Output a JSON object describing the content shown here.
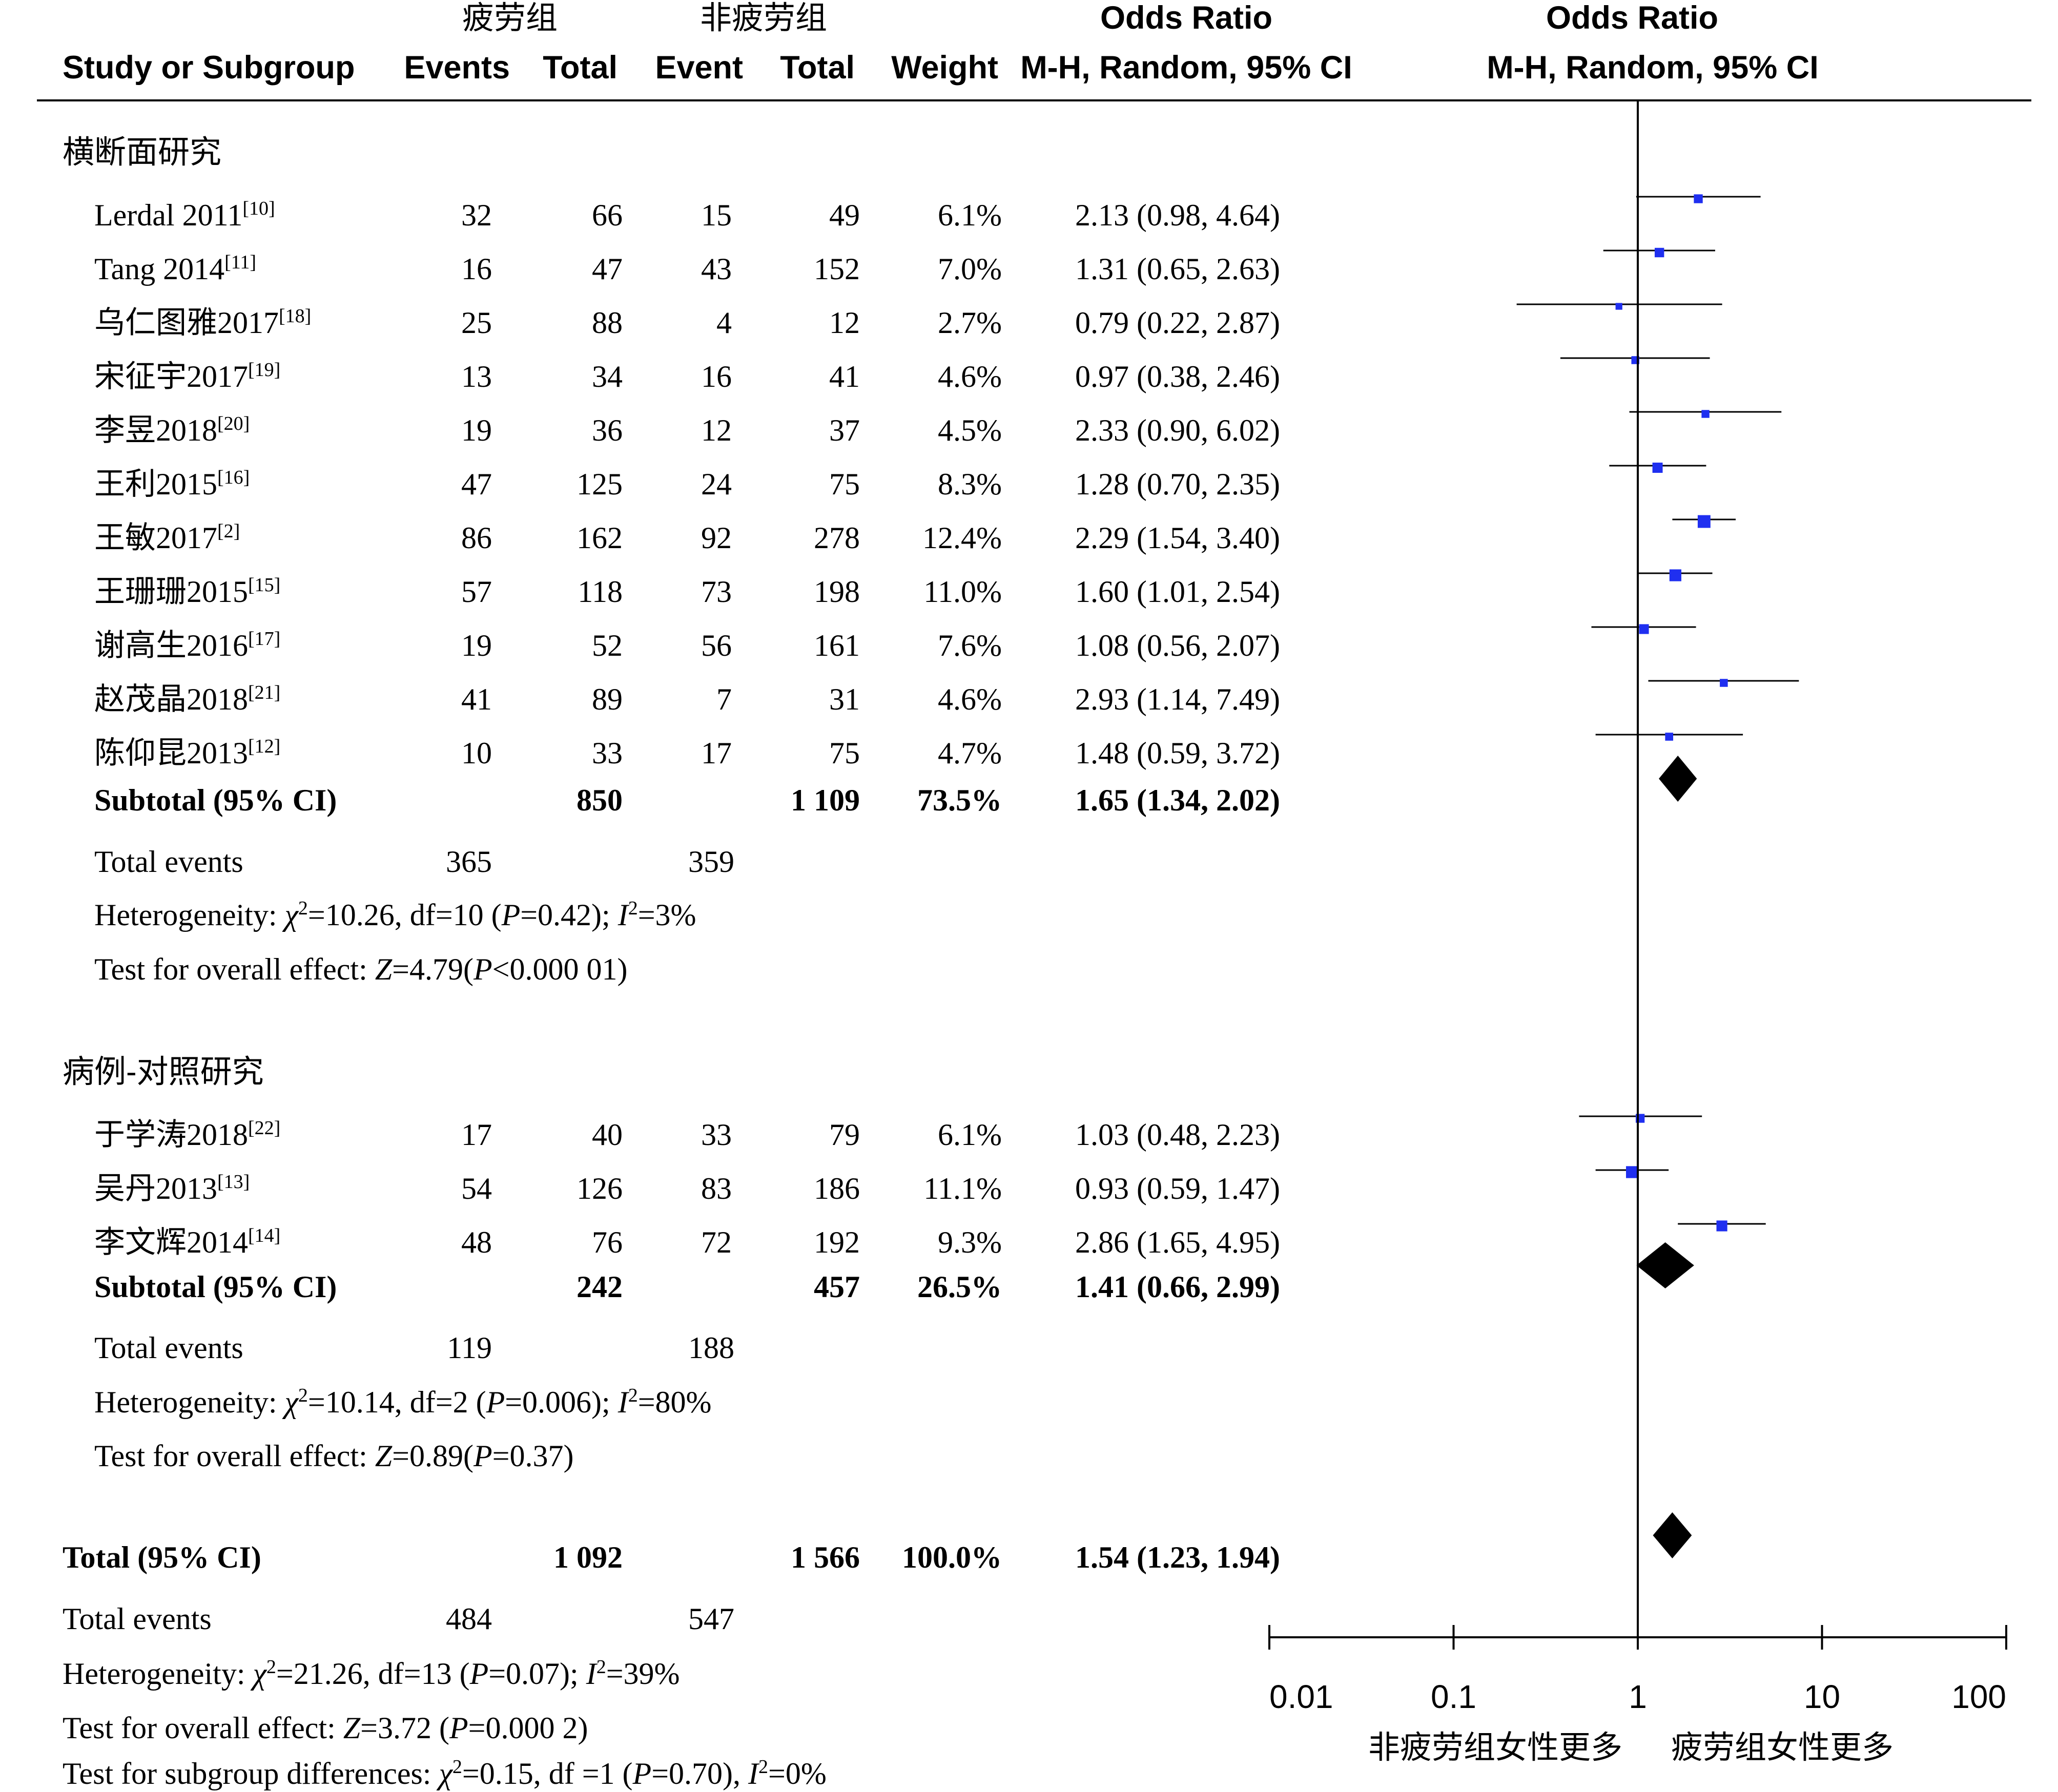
{
  "chart_data": {
    "type": "forest",
    "header": {
      "group1": "疲劳组",
      "group2": "非疲劳组",
      "odds_ratio": "Odds Ratio",
      "study_col": "Study or Subgroup",
      "events1": "Events",
      "total1": "Total",
      "events2": "Event",
      "total2": "Total",
      "weight": "Weight",
      "method_text": "M-H, Random, 95% CI",
      "method_plot": "M-H, Random, 95% CI"
    },
    "subgroups": [
      {
        "title": "横断面研究",
        "studies": [
          {
            "name": "Lerdal 2011",
            "ref": "[10]",
            "e1": "32",
            "n1": "66",
            "e2": "15",
            "n2": "49",
            "weight": "6.1%",
            "ci_text": "2.13 (0.98, 4.64)",
            "or": 2.13,
            "lo": 0.98,
            "hi": 4.64,
            "w": 6.1
          },
          {
            "name": "Tang 2014",
            "ref": "[11]",
            "e1": "16",
            "n1": "47",
            "e2": "43",
            "n2": "152",
            "weight": "7.0%",
            "ci_text": "1.31 (0.65, 2.63)",
            "or": 1.31,
            "lo": 0.65,
            "hi": 2.63,
            "w": 7.0
          },
          {
            "name": "乌仁图雅2017",
            "ref": "[18]",
            "e1": "25",
            "n1": "88",
            "e2": "4",
            "n2": "12",
            "weight": "2.7%",
            "ci_text": "0.79 (0.22, 2.87)",
            "or": 0.79,
            "lo": 0.22,
            "hi": 2.87,
            "w": 2.7
          },
          {
            "name": "宋征宇2017",
            "ref": "[19]",
            "e1": "13",
            "n1": "34",
            "e2": "16",
            "n2": "41",
            "weight": "4.6%",
            "ci_text": "0.97 (0.38, 2.46)",
            "or": 0.97,
            "lo": 0.38,
            "hi": 2.46,
            "w": 4.6
          },
          {
            "name": "李昱2018",
            "ref": "[20]",
            "e1": "19",
            "n1": "36",
            "e2": "12",
            "n2": "37",
            "weight": "4.5%",
            "ci_text": "2.33 (0.90, 6.02)",
            "or": 2.33,
            "lo": 0.9,
            "hi": 6.02,
            "w": 4.5
          },
          {
            "name": "王利2015",
            "ref": "[16]",
            "e1": "47",
            "n1": "125",
            "e2": "24",
            "n2": "75",
            "weight": "8.3%",
            "ci_text": "1.28 (0.70, 2.35)",
            "or": 1.28,
            "lo": 0.7,
            "hi": 2.35,
            "w": 8.3
          },
          {
            "name": "王敏2017",
            "ref": "[2]",
            "e1": "86",
            "n1": "162",
            "e2": "92",
            "n2": "278",
            "weight": "12.4%",
            "ci_text": "2.29 (1.54, 3.40)",
            "or": 2.29,
            "lo": 1.54,
            "hi": 3.4,
            "w": 12.4
          },
          {
            "name": "王珊珊2015",
            "ref": "[15]",
            "e1": "57",
            "n1": "118",
            "e2": "73",
            "n2": "198",
            "weight": "11.0%",
            "ci_text": "1.60 (1.01, 2.54)",
            "or": 1.6,
            "lo": 1.01,
            "hi": 2.54,
            "w": 11.0
          },
          {
            "name": "谢高生2016",
            "ref": "[17]",
            "e1": "19",
            "n1": "52",
            "e2": "56",
            "n2": "161",
            "weight": "7.6%",
            "ci_text": "1.08 (0.56, 2.07)",
            "or": 1.08,
            "lo": 0.56,
            "hi": 2.07,
            "w": 7.6
          },
          {
            "name": "赵茂晶2018",
            "ref": "[21]",
            "e1": "41",
            "n1": "89",
            "e2": "7",
            "n2": "31",
            "weight": "4.6%",
            "ci_text": "2.93 (1.14, 7.49)",
            "or": 2.93,
            "lo": 1.14,
            "hi": 7.49,
            "w": 4.6
          },
          {
            "name": "陈仰昆2013",
            "ref": "[12]",
            "e1": "10",
            "n1": "33",
            "e2": "17",
            "n2": "75",
            "weight": "4.7%",
            "ci_text": "1.48 (0.59, 3.72)",
            "or": 1.48,
            "lo": 0.59,
            "hi": 3.72,
            "w": 4.7
          }
        ],
        "subtotal": {
          "label": "Subtotal (95% CI)",
          "n1": "850",
          "n2": "1 109",
          "weight": "73.5%",
          "ci_text": "1.65 (1.34, 2.02)",
          "or": 1.65,
          "lo": 1.34,
          "hi": 2.02
        },
        "total_events": {
          "label": "Total events",
          "e1": "365",
          "e2": "359"
        },
        "heterogeneity": {
          "prefix": "Heterogeneity: ",
          "chi_sym": "χ",
          "chi_sup": "2",
          "part_a": "=10.26, df=10 (",
          "p_sym": "P",
          "part_b": "=0.42); ",
          "i_sym": "I",
          "i_sup": "2",
          "part_c": "=3%"
        },
        "overall": {
          "prefix": "Test for overall effect: ",
          "z_sym": "Z",
          "part_a": "=4.79(",
          "p_sym": "P",
          "part_b": "<0.000 01)"
        }
      },
      {
        "title": "病例-对照研究",
        "studies": [
          {
            "name": "于学涛2018",
            "ref": "[22]",
            "e1": "17",
            "n1": "40",
            "e2": "33",
            "n2": "79",
            "weight": "6.1%",
            "ci_text": "1.03 (0.48, 2.23)",
            "or": 1.03,
            "lo": 0.48,
            "hi": 2.23,
            "w": 6.1
          },
          {
            "name": "吴丹2013",
            "ref": "[13]",
            "e1": "54",
            "n1": "126",
            "e2": "83",
            "n2": "186",
            "weight": "11.1%",
            "ci_text": "0.93 (0.59, 1.47)",
            "or": 0.93,
            "lo": 0.59,
            "hi": 1.47,
            "w": 11.1
          },
          {
            "name": "李文辉2014",
            "ref": "[14]",
            "e1": "48",
            "n1": "76",
            "e2": "72",
            "n2": "192",
            "weight": "9.3%",
            "ci_text": "2.86 (1.65, 4.95)",
            "or": 2.86,
            "lo": 1.65,
            "hi": 4.95,
            "w": 9.3
          }
        ],
        "subtotal": {
          "label": "Subtotal (95% CI)",
          "n1": "242",
          "n2": "457",
          "weight": "26.5%",
          "ci_text": "1.41 (0.66, 2.99)",
          "or": 1.41,
          "lo": 0.66,
          "hi": 2.99
        },
        "total_events": {
          "label": "Total events",
          "e1": "119",
          "e2": "188"
        },
        "heterogeneity": {
          "prefix": "Heterogeneity: ",
          "chi_sym": "χ",
          "chi_sup": "2",
          "part_a": "=10.14, df=2 (",
          "p_sym": "P",
          "part_b": "=0.006); ",
          "i_sym": "I",
          "i_sup": "2",
          "part_c": "=80%"
        },
        "overall": {
          "prefix": "Test for overall effect: ",
          "z_sym": "Z",
          "part_a": "=0.89(",
          "p_sym": "P",
          "part_b": "=0.37)"
        }
      }
    ],
    "total": {
      "label": "Total (95% CI)",
      "n1": "1 092",
      "n2": "1 566",
      "weight": "100.0%",
      "ci_text": "1.54 (1.23, 1.94)",
      "or": 1.54,
      "lo": 1.23,
      "hi": 1.94
    },
    "total_events": {
      "label": "Total events",
      "e1": "484",
      "e2": "547"
    },
    "heterogeneity": {
      "prefix": "Heterogeneity: ",
      "chi_sym": "χ",
      "chi_sup": "2",
      "part_a": "=21.26, df=13 (",
      "p_sym": "P",
      "part_b": "=0.07); ",
      "i_sym": "I",
      "i_sup": "2",
      "part_c": "=39%"
    },
    "overall": {
      "prefix": "Test for overall effect: ",
      "z_sym": "Z",
      "part_a": "=3.72 (",
      "p_sym": "P",
      "part_b": "=0.000 2)"
    },
    "subgroup_diff": {
      "prefix": "Test for subgroup differences: ",
      "chi_sym": "χ",
      "chi_sup": "2",
      "part_a": "=0.15, df =1 (",
      "p_sym": "P",
      "part_b": "=0.70), ",
      "i_sym": "I",
      "i_sup": "2",
      "part_c": "=0%"
    },
    "x_axis": {
      "scale": "log",
      "ticks": [
        0.01,
        0.1,
        1,
        10,
        100
      ],
      "tick_labels": [
        "0.01",
        "0.1",
        "1",
        "10",
        "100"
      ],
      "favours_left": "非疲劳组女性更多",
      "favours_right": "疲劳组女性更多"
    },
    "colors": {
      "study_marker": "#1f2ff0",
      "diamond": "#000000",
      "line": "#000000"
    }
  }
}
